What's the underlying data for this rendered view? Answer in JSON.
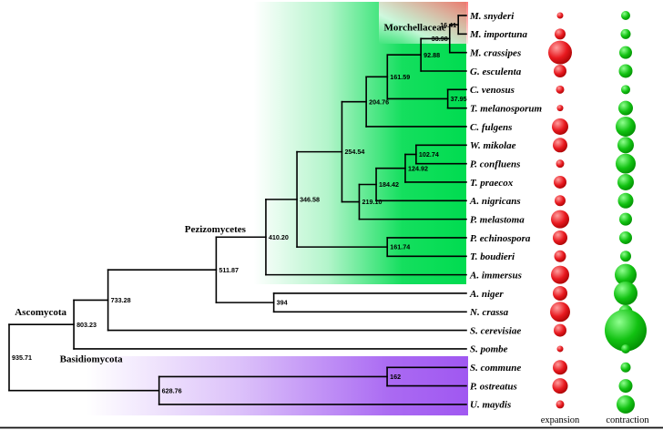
{
  "legend": {
    "expansion_label": "expansion",
    "contraction_label": "contraction"
  },
  "colors": {
    "branch": "#000000",
    "text": "#000000",
    "expansion_bubble_light": "#ff9d9d",
    "expansion_bubble_main": "#e8191f",
    "expansion_bubble_dark": "#9e0000",
    "contraction_bubble_light": "#90ff90",
    "contraction_bubble_main": "#12c212",
    "contraction_bubble_dark": "#008500",
    "pezizomycetes_highlight": "#00dc50",
    "morchellaceae_highlight": "#ff6e6e",
    "basidiomycota_highlight": "#9b4ff0"
  },
  "chart_data": {
    "type": "phylogenetic_tree",
    "clade_labels": [
      {
        "text": "Morchellaceae",
        "node": "33.98"
      },
      {
        "text": "Pezizomycetes",
        "node": "410.20"
      },
      {
        "text": "Ascomycota",
        "node": "803.23"
      },
      {
        "text": "Basidiomycota",
        "node": "628.76"
      }
    ],
    "tips": [
      {
        "name": "M. snyderi",
        "expansion_r": 3.5,
        "contraction_r": 5
      },
      {
        "name": "M. importuna",
        "expansion_r": 6,
        "contraction_r": 5.5
      },
      {
        "name": "M. crassipes",
        "expansion_r": 13,
        "contraction_r": 7
      },
      {
        "name": "G. esculenta",
        "expansion_r": 7,
        "contraction_r": 7.5
      },
      {
        "name": "C. venosus",
        "expansion_r": 4.5,
        "contraction_r": 5
      },
      {
        "name": "T. melanosporum",
        "expansion_r": 3.5,
        "contraction_r": 8
      },
      {
        "name": "C. fulgens",
        "expansion_r": 9,
        "contraction_r": 11
      },
      {
        "name": "W. mikolae",
        "expansion_r": 8,
        "contraction_r": 9
      },
      {
        "name": "P. confluens",
        "expansion_r": 4.5,
        "contraction_r": 11
      },
      {
        "name": "T. praecox",
        "expansion_r": 7,
        "contraction_r": 9
      },
      {
        "name": "A. nigricans",
        "expansion_r": 6,
        "contraction_r": 8.5
      },
      {
        "name": "P. melastoma",
        "expansion_r": 10,
        "contraction_r": 7
      },
      {
        "name": "P. echinospora",
        "expansion_r": 8,
        "contraction_r": 7
      },
      {
        "name": "T. boudieri",
        "expansion_r": 6.5,
        "contraction_r": 6
      },
      {
        "name": "A. immersus",
        "expansion_r": 10,
        "contraction_r": 12
      },
      {
        "name": "A. niger",
        "expansion_r": 8,
        "contraction_r": 13
      },
      {
        "name": "N. crassa",
        "expansion_r": 11,
        "contraction_r": 7.5
      },
      {
        "name": "S. cerevisiae",
        "expansion_r": 7,
        "contraction_r": 23
      },
      {
        "name": "S. pombe",
        "expansion_r": 3.5,
        "contraction_r": 5
      },
      {
        "name": "S. commune",
        "expansion_r": 8,
        "contraction_r": 5.5
      },
      {
        "name": "P. ostreatus",
        "expansion_r": 8.5,
        "contraction_r": 7.5
      },
      {
        "name": "U. maydis",
        "expansion_r": 4.5,
        "contraction_r": 10
      }
    ],
    "tree": {
      "age": 935.71,
      "label": "935.71",
      "children": [
        {
          "age": 803.23,
          "label": "803.23",
          "children": [
            {
              "age": 733.28,
              "label": "733.28",
              "children": [
                {
                  "age": 511.87,
                  "label": "511.87",
                  "children": [
                    {
                      "age": 410.2,
                      "label": "410.20",
                      "children": [
                        {
                          "age": 346.58,
                          "label": "346.58",
                          "children": [
                            {
                              "age": 254.54,
                              "label": "254.54",
                              "children": [
                                {
                                  "age": 204.76,
                                  "label": "204.76",
                                  "children": [
                                    {
                                      "age": 161.59,
                                      "label": "161.59",
                                      "children": [
                                        {
                                          "age": 92.88,
                                          "label": "92.88",
                                          "children": [
                                            {
                                              "age": 33.98,
                                              "label": "33.98",
                                              "children": [
                                                {
                                                  "age": 16.41,
                                                  "label": "16.41",
                                                  "children": [
                                                    {
                                                      "tip": "M. snyderi"
                                                    },
                                                    {
                                                      "tip": "M. importuna"
                                                    }
                                                  ]
                                                },
                                                {
                                                  "tip": "M. crassipes"
                                                }
                                              ]
                                            },
                                            {
                                              "tip": "G. esculenta"
                                            }
                                          ]
                                        },
                                        {
                                          "age": 37.95,
                                          "label": "37.95",
                                          "children": [
                                            {
                                              "tip": "C. venosus"
                                            },
                                            {
                                              "tip": "T. melanosporum"
                                            }
                                          ]
                                        }
                                      ]
                                    },
                                    {
                                      "tip": "C. fulgens"
                                    }
                                  ]
                                },
                                {
                                  "age": 219.1,
                                  "label": "219.10",
                                  "children": [
                                    {
                                      "age": 184.42,
                                      "label": "184.42",
                                      "children": [
                                        {
                                          "age": 124.92,
                                          "label": "124.92",
                                          "children": [
                                            {
                                              "age": 102.74,
                                              "label": "102.74",
                                              "children": [
                                                {
                                                  "tip": "W. mikolae"
                                                },
                                                {
                                                  "tip": "P. confluens"
                                                }
                                              ]
                                            },
                                            {
                                              "tip": "T. praecox"
                                            }
                                          ]
                                        },
                                        {
                                          "tip": "A. nigricans"
                                        }
                                      ]
                                    },
                                    {
                                      "tip": "P. melastoma"
                                    }
                                  ]
                                }
                              ]
                            },
                            {
                              "age": 161.74,
                              "label": "161.74",
                              "children": [
                                {
                                  "tip": "P. echinospora"
                                },
                                {
                                  "tip": "T. boudieri"
                                }
                              ]
                            }
                          ]
                        },
                        {
                          "tip": "A. immersus"
                        }
                      ]
                    },
                    {
                      "age": 394,
                      "label": "394",
                      "children": [
                        {
                          "tip": "A. niger"
                        },
                        {
                          "tip": "N. crassa"
                        }
                      ]
                    }
                  ]
                },
                {
                  "tip": "S. cerevisiae"
                }
              ]
            },
            {
              "tip": "S. pombe"
            }
          ]
        },
        {
          "age": 628.76,
          "label": "628.76",
          "children": [
            {
              "age": 162,
              "label": "162",
              "children": [
                {
                  "tip": "S. commune"
                },
                {
                  "tip": "P. ostreatus"
                }
              ]
            },
            {
              "tip": "U. maydis"
            }
          ]
        }
      ]
    }
  }
}
